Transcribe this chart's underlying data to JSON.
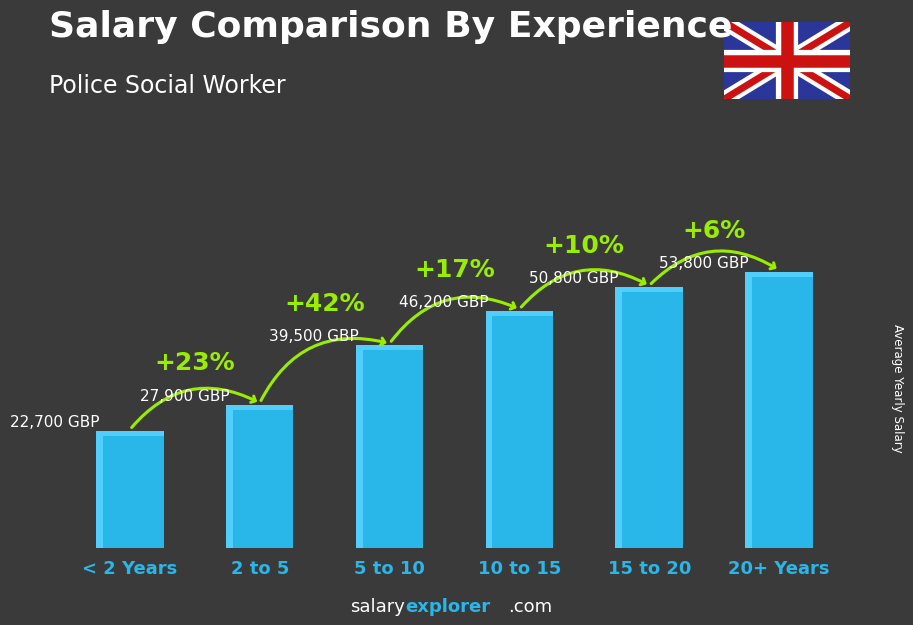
{
  "title": "Salary Comparison By Experience",
  "subtitle": "Police Social Worker",
  "categories": [
    "< 2 Years",
    "2 to 5",
    "5 to 10",
    "10 to 15",
    "15 to 20",
    "20+ Years"
  ],
  "values": [
    22700,
    27900,
    39500,
    46200,
    50800,
    53800
  ],
  "value_labels": [
    "22,700 GBP",
    "27,900 GBP",
    "39,500 GBP",
    "46,200 GBP",
    "50,800 GBP",
    "53,800 GBP"
  ],
  "pct_labels": [
    "+23%",
    "+42%",
    "+17%",
    "+10%",
    "+6%"
  ],
  "bar_color_main": "#29B6E8",
  "bar_color_light": "#50CFFF",
  "bar_color_dark": "#1A90C0",
  "background_color": "#3a3a3a",
  "text_color_white": "#FFFFFF",
  "text_color_green": "#99EE00",
  "footer_salary": "salary",
  "footer_explorer": "explorer",
  "footer_com": ".com",
  "ylabel": "Average Yearly Salary",
  "ylim": [
    0,
    65000
  ],
  "title_fontsize": 26,
  "subtitle_fontsize": 17,
  "label_fontsize": 11,
  "pct_fontsize": 18,
  "cat_fontsize": 13
}
